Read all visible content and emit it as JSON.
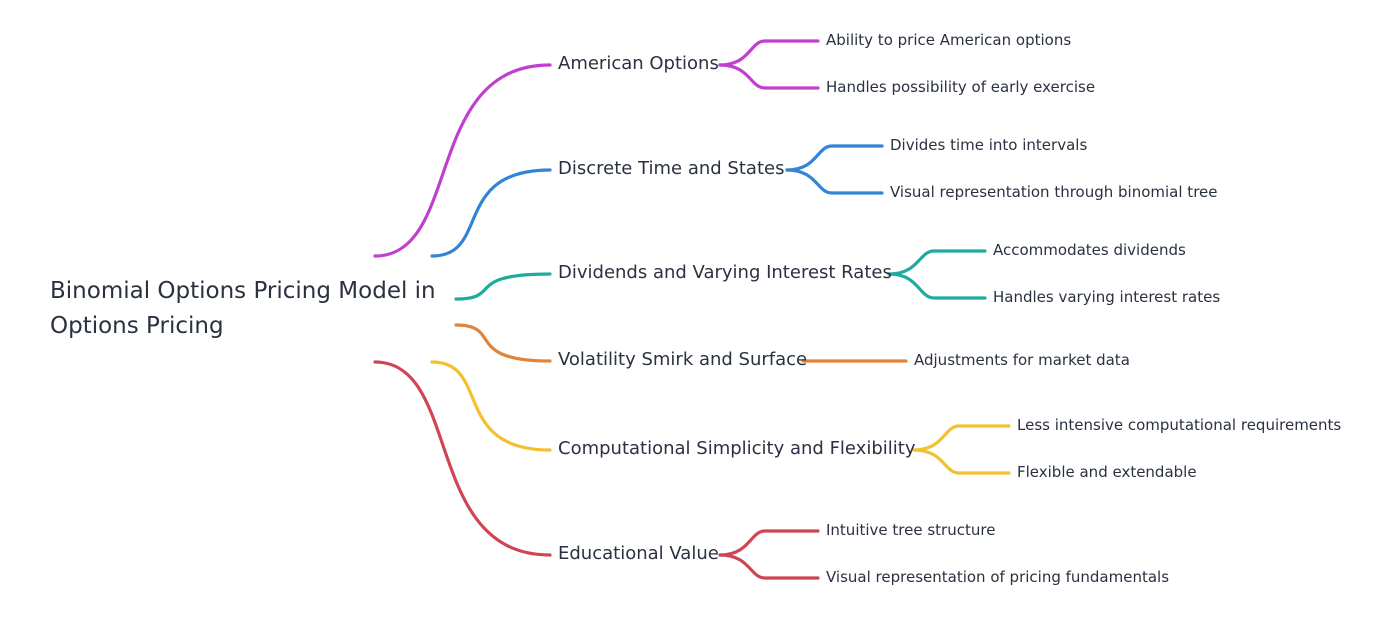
{
  "root": {
    "title": "Binomial Options Pricing Model in Options Pricing"
  },
  "branches": [
    {
      "label": "American Options",
      "color": "#bf3fcf",
      "children": [
        "Ability to price American options",
        "Handles possibility of early exercise"
      ]
    },
    {
      "label": "Discrete Time and States",
      "color": "#3184d6",
      "children": [
        "Divides time into intervals",
        "Visual representation through binomial tree"
      ]
    },
    {
      "label": "Dividends and Varying Interest Rates",
      "color": "#1fab9b",
      "children": [
        "Accommodates dividends",
        "Handles varying interest rates"
      ]
    },
    {
      "label": "Volatility Smirk and Surface",
      "color": "#e0843a",
      "children": [
        "Adjustments for market data"
      ]
    },
    {
      "label": "Computational Simplicity and Flexibility",
      "color": "#f2c12e",
      "children": [
        "Less intensive computational requirements",
        "Flexible and extendable"
      ]
    },
    {
      "label": "Educational Value",
      "color": "#d14455",
      "children": [
        "Intuitive tree structure",
        "Visual representation of pricing fundamentals"
      ]
    }
  ]
}
